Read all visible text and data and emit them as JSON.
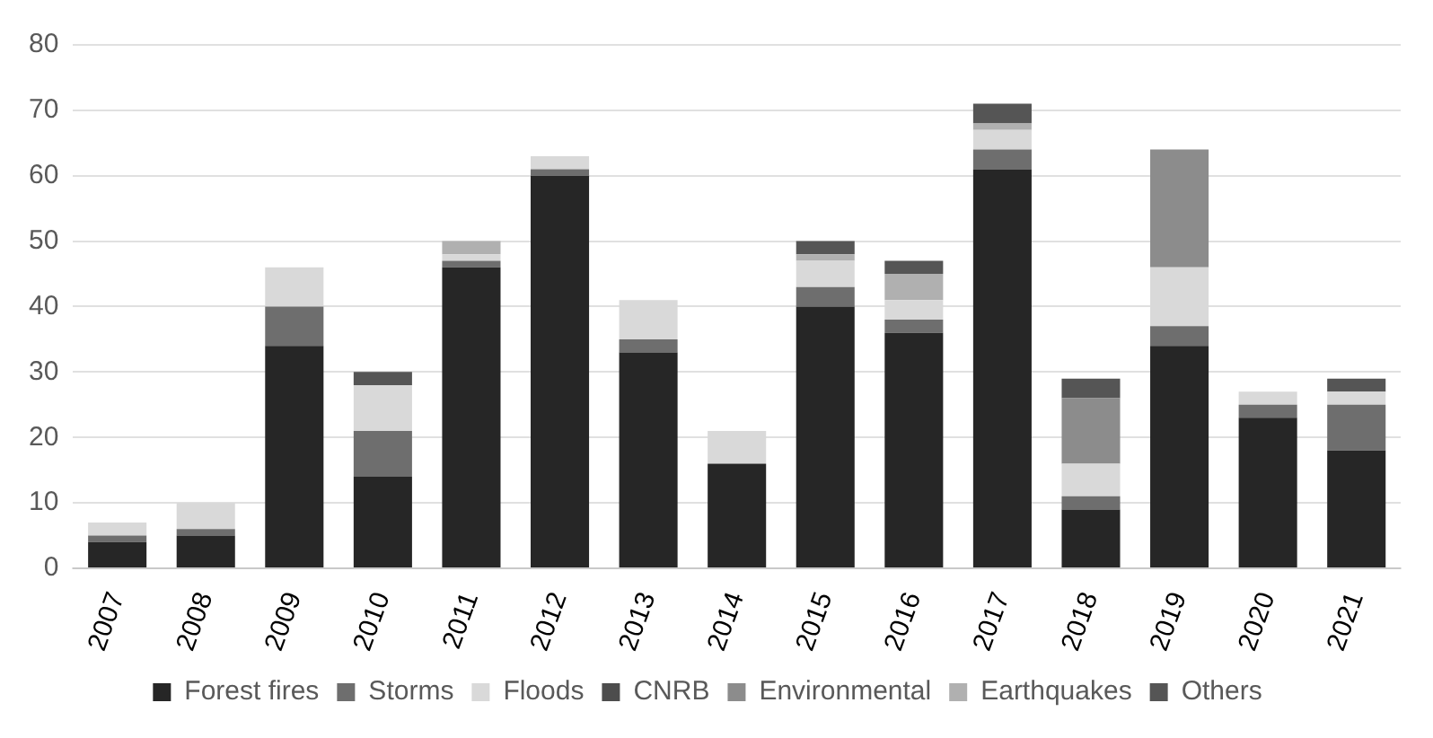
{
  "chart_data": {
    "type": "bar",
    "stacked": true,
    "categories": [
      "2007",
      "2008",
      "2009",
      "2010",
      "2011",
      "2012",
      "2013",
      "2014",
      "2015",
      "2016",
      "2017",
      "2018",
      "2019",
      "2020",
      "2021"
    ],
    "series": [
      {
        "name": "Forest fires",
        "color": "#262626",
        "values": [
          4,
          5,
          34,
          14,
          46,
          60,
          33,
          16,
          40,
          36,
          61,
          9,
          34,
          23,
          18
        ]
      },
      {
        "name": "Storms",
        "color": "#6e6e6e",
        "values": [
          1,
          1,
          6,
          7,
          1,
          1,
          2,
          0,
          3,
          2,
          3,
          2,
          3,
          2,
          7
        ]
      },
      {
        "name": "Floods",
        "color": "#d9d9d9",
        "values": [
          2,
          4,
          6,
          7,
          1,
          2,
          6,
          5,
          4,
          3,
          3,
          5,
          9,
          2,
          2
        ]
      },
      {
        "name": "CNRB",
        "color": "#4d4d4d",
        "values": [
          0,
          0,
          0,
          0,
          0,
          0,
          0,
          0,
          0,
          0,
          0,
          0,
          0,
          0,
          0
        ]
      },
      {
        "name": "Environmental",
        "color": "#8c8c8c",
        "values": [
          0,
          0,
          0,
          0,
          0,
          0,
          0,
          0,
          0,
          0,
          0,
          10,
          18,
          0,
          0
        ]
      },
      {
        "name": "Earthquakes",
        "color": "#b0b0b0",
        "values": [
          0,
          0,
          0,
          0,
          2,
          0,
          0,
          0,
          1,
          4,
          1,
          0,
          0,
          0,
          0
        ]
      },
      {
        "name": "Others",
        "color": "#555555",
        "values": [
          0,
          0,
          0,
          2,
          0,
          0,
          0,
          0,
          2,
          2,
          3,
          3,
          0,
          0,
          2
        ]
      }
    ],
    "ylim": [
      0,
      80
    ],
    "yticks": [
      0,
      10,
      20,
      30,
      40,
      50,
      60,
      70,
      80
    ],
    "grid": "y",
    "legend": "bottom"
  }
}
